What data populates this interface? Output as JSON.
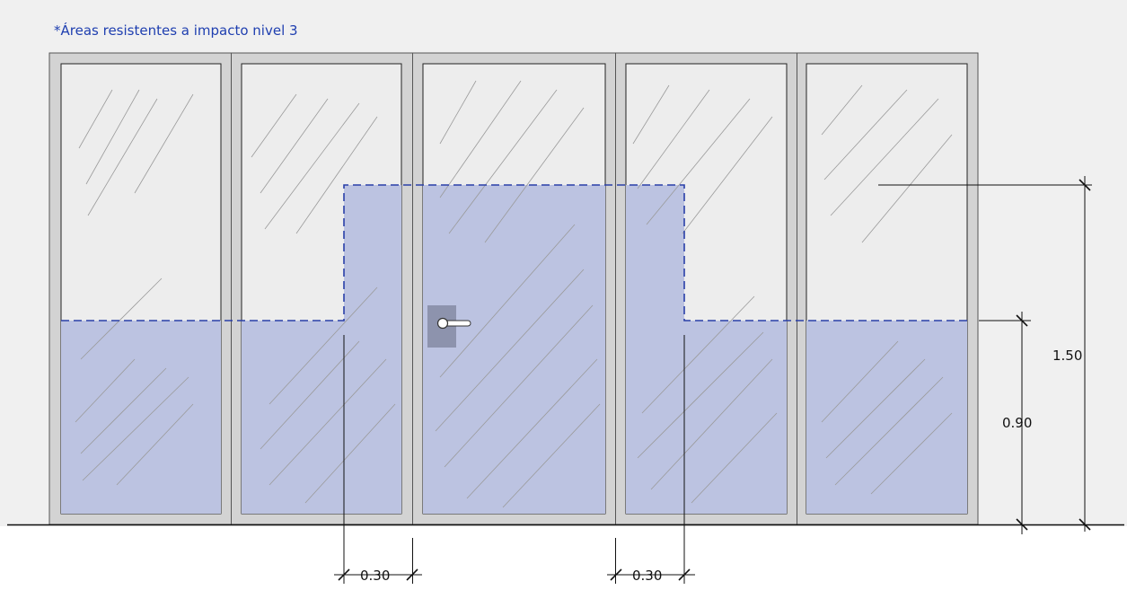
{
  "note": "*Áreas resistentes a impacto nivel 3",
  "dimensions": {
    "height_upper": "1.50",
    "height_lower": "0.90",
    "offset_left": "0.30",
    "offset_right": "0.30"
  },
  "colors": {
    "background": "#f0f0f0",
    "frame": "#d3d3d3",
    "glass": "#ededed",
    "impact_zone": "#bcc3e1",
    "impact_outline": "#2a3fa8",
    "handle_plate": "#8d93ad",
    "text_note": "#1f3fb0"
  },
  "icons": {
    "door_handle": "lever-handle-icon",
    "glass_reflection": "diagonal-hatch"
  }
}
